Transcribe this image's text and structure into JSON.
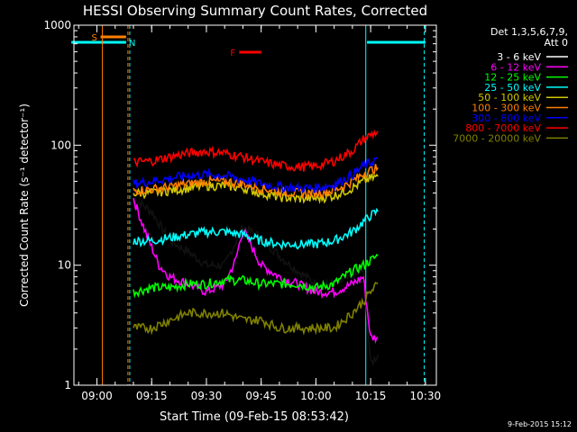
{
  "chart_data": {
    "type": "line",
    "title": "HESSI Observing Summary Count Rates, Corrected",
    "xlabel": "Start Time (09-Feb-15 08:53:42)",
    "ylabel": "Corrected Count Rate (s⁻¹ detector⁻¹)",
    "y_scale": "log",
    "ylim": [
      1,
      1000
    ],
    "xlim": [
      "08:53:42",
      "10:33"
    ],
    "x_ticks": [
      "09:00",
      "09:15",
      "09:30",
      "09:45",
      "10:00",
      "10:15",
      "10:30"
    ],
    "y_ticks": [
      "1",
      "10",
      "100",
      "1000"
    ],
    "timestamp": "9-Feb-2015 15:12",
    "legend_header": [
      "Det 1,3,5,6,7,9,",
      "Att 0"
    ],
    "legend_placement": "right",
    "colors": {
      "background": "#000000",
      "axes": "#ffffff",
      "flag_S": "#ff7f00",
      "flag_N": "#00ffff",
      "flag_F": "#ff0000"
    },
    "flags": [
      {
        "label": "S",
        "start": "09:01",
        "end": "09:08",
        "color": "#ff7f00"
      },
      {
        "label": "N",
        "start": "08:53",
        "end": "09:08",
        "color": "#00ffff"
      },
      {
        "label": "N",
        "start": "10:14",
        "end": "10:30",
        "color": "#00ffff"
      },
      {
        "label": "F",
        "start": "09:39",
        "end": "09:45",
        "color": "#ff0000"
      }
    ],
    "markers": [
      {
        "time": "09:01:30",
        "style": "solid",
        "color": "#ff7f00"
      },
      {
        "time": "09:08:30",
        "style": "dashed",
        "color": "#ff7f00"
      },
      {
        "time": "09:09:00",
        "style": "dashed",
        "color": "#00ffff"
      },
      {
        "time": "10:13:40",
        "style": "solid",
        "color": "#00ffff"
      },
      {
        "time": "10:29:40",
        "style": "dashed",
        "color": "#00ffff"
      }
    ],
    "series": [
      {
        "name": "3 - 6 keV",
        "color": "#000000",
        "x": [
          "09:10",
          "09:15",
          "09:20",
          "09:25",
          "09:30",
          "09:35",
          "09:40",
          "09:45",
          "09:50",
          "09:55",
          "10:00",
          "10:05",
          "10:10",
          "10:13",
          "10:15",
          "10:17"
        ],
        "values": [
          36,
          28,
          16,
          13,
          10,
          10,
          21,
          17,
          12,
          9,
          7,
          7,
          8,
          9,
          1.5,
          1.8
        ]
      },
      {
        "name": "6 - 12 keV",
        "color": "#ff00ff",
        "x": [
          "09:10",
          "09:13",
          "09:17",
          "09:20",
          "09:25",
          "09:30",
          "09:35",
          "09:38",
          "09:40",
          "09:45",
          "09:50",
          "09:55",
          "10:00",
          "10:05",
          "10:10",
          "10:13",
          "10:15",
          "10:17"
        ],
        "values": [
          36,
          20,
          10,
          8,
          7,
          6,
          7,
          11,
          20,
          10,
          8,
          7,
          6,
          6,
          7,
          8,
          2.5,
          2.5
        ]
      },
      {
        "name": "12 - 25 keV",
        "color": "#00ff00",
        "x": [
          "09:10",
          "09:15",
          "09:20",
          "09:25",
          "09:30",
          "09:35",
          "09:40",
          "09:45",
          "09:50",
          "09:55",
          "10:00",
          "10:05",
          "10:10",
          "10:13",
          "10:15",
          "10:17"
        ],
        "values": [
          6,
          6.5,
          6.5,
          7,
          7,
          7.5,
          7.5,
          7,
          7,
          7,
          6.5,
          7,
          9,
          10,
          11,
          12
        ]
      },
      {
        "name": "25 - 50 keV",
        "color": "#00ffff",
        "x": [
          "09:10",
          "09:15",
          "09:20",
          "09:25",
          "09:30",
          "09:35",
          "09:40",
          "09:45",
          "09:50",
          "09:55",
          "10:00",
          "10:05",
          "10:10",
          "10:13",
          "10:15",
          "10:17"
        ],
        "values": [
          16,
          16,
          17,
          18,
          19,
          19,
          18,
          16,
          15,
          15,
          15,
          16,
          19,
          23,
          26,
          28
        ]
      },
      {
        "name": "50 - 100 keV",
        "color": "#d2c800",
        "x": [
          "09:10",
          "09:15",
          "09:20",
          "09:25",
          "09:30",
          "09:35",
          "09:40",
          "09:45",
          "09:50",
          "09:55",
          "10:00",
          "10:05",
          "10:10",
          "10:13",
          "10:15",
          "10:17"
        ],
        "values": [
          40,
          40,
          42,
          44,
          46,
          46,
          44,
          40,
          37,
          36,
          36,
          38,
          44,
          50,
          53,
          55
        ]
      },
      {
        "name": "100 - 300 keV",
        "color": "#ff7f00",
        "x": [
          "09:10",
          "09:15",
          "09:20",
          "09:25",
          "09:30",
          "09:35",
          "09:40",
          "09:45",
          "09:50",
          "09:55",
          "10:00",
          "10:05",
          "10:10",
          "10:13",
          "10:15",
          "10:17"
        ],
        "values": [
          42,
          43,
          45,
          48,
          50,
          50,
          48,
          44,
          41,
          40,
          40,
          42,
          50,
          58,
          62,
          65
        ]
      },
      {
        "name": "300 - 800 keV",
        "color": "#0000ff",
        "x": [
          "09:10",
          "09:15",
          "09:20",
          "09:25",
          "09:30",
          "09:35",
          "09:40",
          "09:45",
          "09:50",
          "09:55",
          "10:00",
          "10:05",
          "10:10",
          "10:13",
          "10:15",
          "10:17"
        ],
        "values": [
          48,
          50,
          53,
          56,
          57,
          56,
          52,
          48,
          45,
          44,
          44,
          47,
          57,
          67,
          72,
          78
        ]
      },
      {
        "name": "800 - 7000 keV",
        "color": "#ff0000",
        "x": [
          "09:10",
          "09:15",
          "09:20",
          "09:25",
          "09:30",
          "09:35",
          "09:40",
          "09:45",
          "09:50",
          "09:55",
          "10:00",
          "10:05",
          "10:10",
          "10:13",
          "10:15",
          "10:17"
        ],
        "values": [
          72,
          74,
          80,
          86,
          89,
          86,
          80,
          73,
          68,
          66,
          67,
          74,
          90,
          112,
          122,
          130
        ]
      },
      {
        "name": "7000 - 20000 keV",
        "color": "#808000",
        "x": [
          "09:10",
          "09:15",
          "09:20",
          "09:25",
          "09:30",
          "09:35",
          "09:40",
          "09:45",
          "09:50",
          "09:55",
          "10:00",
          "10:05",
          "10:10",
          "10:13",
          "10:15",
          "10:17"
        ],
        "values": [
          3,
          3,
          3.5,
          4,
          4,
          4,
          3.5,
          3.5,
          3,
          3,
          3,
          3,
          4,
          5,
          6,
          7
        ]
      }
    ]
  }
}
